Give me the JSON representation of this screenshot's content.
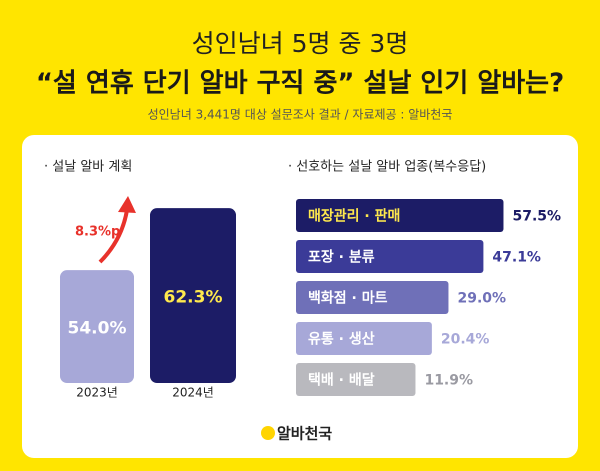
{
  "header": {
    "title_line1": "성인남녀 5명 중 3명",
    "title_line2": "“설 연휴 단기 알바 구직 중” 설날 인기 알바는?",
    "subtitle": "성인남녀 3,441명 대상 설문조사 결과 / 자료제공 : 알바천국"
  },
  "chart_data": [
    {
      "type": "bar",
      "title": "· 설날 알바 계획",
      "categories": [
        "2023년",
        "2024년"
      ],
      "values": [
        54.0,
        62.3
      ],
      "value_labels": [
        "54.0%",
        "62.3%"
      ],
      "colors": [
        "#a7a8d8",
        "#1c1c66"
      ],
      "ylim": [
        38.9,
        65
      ],
      "annotation": "8.3%p"
    },
    {
      "type": "hbar",
      "title": "· 선호하는 설날 알바 업종(복수응답)",
      "categories": [
        "매장관리 · 판매",
        "포장 · 분류",
        "백화점 · 마트",
        "유통 · 생산",
        "택배 · 배달"
      ],
      "values": [
        57.5,
        47.1,
        29.0,
        20.4,
        11.9
      ],
      "value_labels": [
        "57.5%",
        "47.1%",
        "29.0%",
        "20.4%",
        "11.9%"
      ],
      "colors": [
        "#1c1c66",
        "#3b3b98",
        "#6f70b8",
        "#a7a8d8",
        "#b9b9be"
      ],
      "xlim": [
        -50,
        60
      ]
    }
  ],
  "footer": {
    "logo": "알바천국"
  }
}
